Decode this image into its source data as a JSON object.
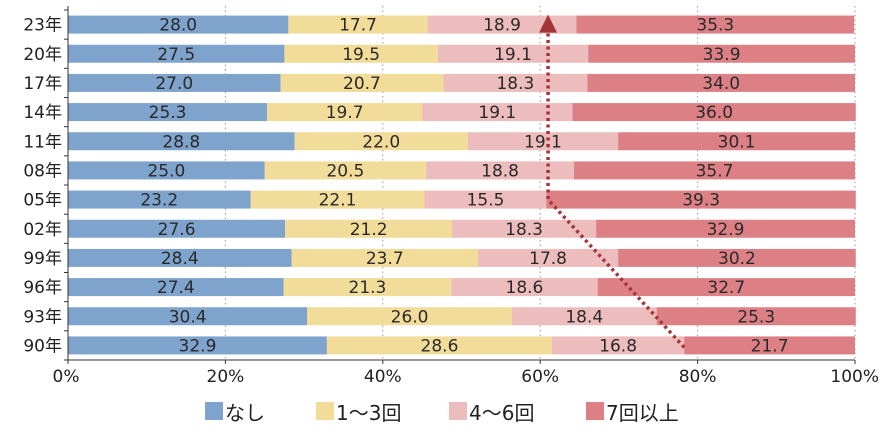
{
  "chart_data": {
    "type": "bar",
    "orientation": "horizontal",
    "stacked": true,
    "categories": [
      "23年",
      "20年",
      "17年",
      "14年",
      "11年",
      "08年",
      "05年",
      "02年",
      "99年",
      "96年",
      "93年",
      "90年"
    ],
    "series": [
      {
        "name": "なし",
        "color": "#7ea3cc",
        "values": [
          28.0,
          27.5,
          27.0,
          25.3,
          28.8,
          25.0,
          23.2,
          27.6,
          28.4,
          27.4,
          30.4,
          32.9
        ],
        "labels": [
          "28.0",
          "27.5",
          "27.0",
          "25.3",
          "28.8",
          "25.0",
          "23.2",
          "27.6",
          "28.4",
          "27.4",
          "30.4",
          "32.9"
        ]
      },
      {
        "name": "1～3回",
        "color": "#f1dc99",
        "values": [
          17.7,
          19.5,
          20.7,
          19.7,
          22.0,
          20.5,
          22.1,
          21.2,
          23.7,
          21.3,
          26.0,
          28.6
        ],
        "labels": [
          "17.7",
          "19.5",
          "20.7",
          "19.7",
          "22.0",
          "20.5",
          "22.1",
          "21.2",
          "23.7",
          "21.3",
          "26.0",
          "28.6"
        ]
      },
      {
        "name": "4～6回",
        "color": "#edbcbc",
        "values": [
          18.9,
          19.1,
          18.3,
          19.1,
          19.1,
          18.8,
          15.5,
          18.3,
          17.8,
          18.6,
          18.4,
          16.8
        ],
        "labels": [
          "18.9",
          "19.1",
          "18.3",
          "19.1",
          "19.1",
          "18.8",
          "15.5",
          "18.3",
          "17.8",
          "18.6",
          "18.4",
          "16.8"
        ]
      },
      {
        "name": "7回以上",
        "color": "#dd8085",
        "values": [
          35.3,
          33.9,
          34.0,
          36.0,
          30.1,
          35.7,
          39.3,
          32.9,
          30.2,
          32.7,
          25.3,
          21.7
        ],
        "labels": [
          "35.3",
          "33.9",
          "34.0",
          "36.0",
          "30.1",
          "35.7",
          "39.3",
          "32.9",
          "30.2",
          "32.7",
          "25.3",
          "21.7"
        ]
      }
    ],
    "xlim": [
      0,
      100
    ],
    "x_ticks": [
      "0%",
      "20%",
      "40%",
      "60%",
      "80%",
      "100%"
    ],
    "grid": "vertical dotted",
    "legend_position": "bottom",
    "annotation": {
      "type": "dotted arrow",
      "color": "#a33538",
      "points": [
        {
          "category": "90年",
          "x": 78.3
        },
        {
          "category": "05年",
          "x": 61.0
        },
        {
          "category": "23年",
          "x": 61.0
        }
      ]
    }
  }
}
